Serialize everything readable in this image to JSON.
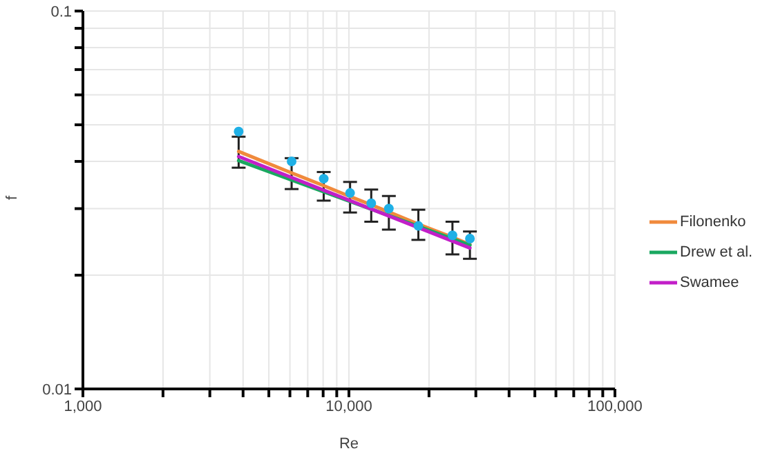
{
  "chart_data": {
    "type": "line",
    "xlabel": "Re",
    "ylabel": "f",
    "log": "xy",
    "grid": true,
    "legend": "right",
    "marker": "none",
    "line_style": "solid",
    "xlim": [
      1000,
      100000
    ],
    "ylim": [
      0.01,
      0.1
    ],
    "xticks": [
      {
        "value": 1000,
        "label": "1,000"
      },
      {
        "value": 2000,
        "label": null
      },
      {
        "value": 3000,
        "label": null
      },
      {
        "value": 4000,
        "label": null
      },
      {
        "value": 5000,
        "label": null
      },
      {
        "value": 6000,
        "label": null
      },
      {
        "value": 7000,
        "label": null
      },
      {
        "value": 8000,
        "label": null
      },
      {
        "value": 9000,
        "label": null
      },
      {
        "value": 10000,
        "label": "10,000"
      },
      {
        "value": 20000,
        "label": null
      },
      {
        "value": 30000,
        "label": null
      },
      {
        "value": 40000,
        "label": null
      },
      {
        "value": 50000,
        "label": null
      },
      {
        "value": 60000,
        "label": null
      },
      {
        "value": 70000,
        "label": null
      },
      {
        "value": 80000,
        "label": null
      },
      {
        "value": 90000,
        "label": null
      },
      {
        "value": 100000,
        "label": "100,000"
      }
    ],
    "yticks": [
      0.01,
      {
        "value": 0.02,
        "label": null
      },
      {
        "value": 0.03,
        "label": null
      },
      {
        "value": 0.04,
        "label": null
      },
      {
        "value": 0.05,
        "label": null
      },
      {
        "value": 0.06,
        "label": null
      },
      {
        "value": 0.07,
        "label": null
      },
      {
        "value": 0.08,
        "label": null
      },
      {
        "value": 0.09,
        "label": null
      },
      0.1
    ],
    "series": [
      {
        "type": "scatter",
        "marker": "circle",
        "color": "#1fb0e6",
        "x": [
          3850,
          6090,
          8040,
          10100,
          12130,
          14130,
          18240,
          24500,
          28500
        ],
        "values": [
          0.048,
          0.04,
          0.036,
          0.033,
          0.031,
          0.03,
          0.027,
          0.0255,
          0.025
        ]
      },
      {
        "name": "Filonenko",
        "color": "#f08a3c",
        "x": [
          3850,
          6090,
          8040,
          10100,
          12130,
          14130,
          18240,
          24500,
          28500
        ],
        "values": [
          0.0425,
          0.0373,
          0.0345,
          0.0323,
          0.0307,
          0.0294,
          0.0273,
          0.0252,
          0.0241
        ],
        "errors": [
          0.004,
          0.0035,
          0.003,
          0.003,
          0.003,
          0.003,
          0.0025,
          0.0025,
          0.002
        ]
      },
      {
        "name": "Drew et al.",
        "color": "#1aa860",
        "x": [
          3850,
          28500
        ],
        "values": [
          0.0402,
          0.024
        ]
      },
      {
        "name": "Swamee",
        "color": "#c21fc8",
        "x": [
          3850,
          28500
        ],
        "values": [
          0.0412,
          0.0236
        ]
      }
    ]
  }
}
